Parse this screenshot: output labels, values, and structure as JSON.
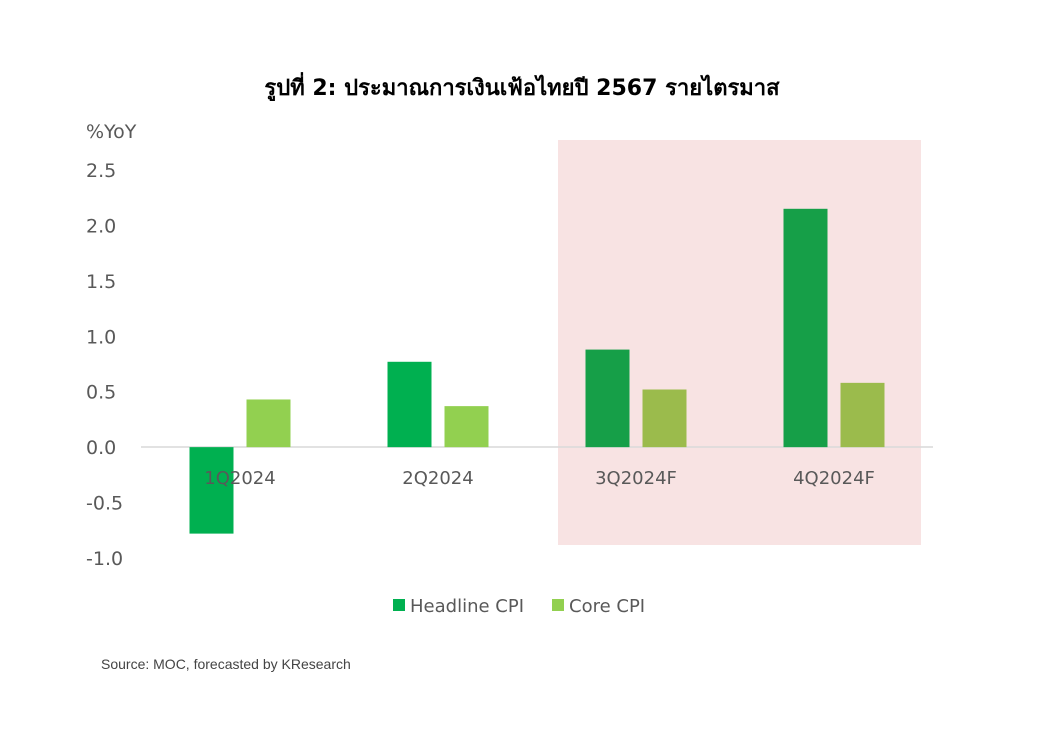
{
  "chart_data": {
    "type": "bar",
    "title": "รูปที่ 2: ประมาณการเงินเฟ้อไทยปี 2567 รายไตรมาส",
    "ylabel": "%YoY",
    "categories": [
      "1Q2024",
      "2Q2024",
      "3Q2024F",
      "4Q2024F"
    ],
    "series": [
      {
        "name": "Headline CPI",
        "values": [
          -0.78,
          0.77,
          0.88,
          2.15
        ]
      },
      {
        "name": "Core CPI",
        "values": [
          0.43,
          0.37,
          0.52,
          0.58
        ]
      }
    ],
    "forecast_highlight": [
      "3Q2024F",
      "4Q2024F"
    ],
    "ylim": [
      -1.0,
      2.5
    ],
    "yticks": [
      "2.5",
      "2.0",
      "1.5",
      "1.0",
      "0.5",
      "0.0",
      "-0.5",
      "-1.0"
    ],
    "grid": false,
    "legend_position": "bottom-center",
    "colors": {
      "headline": "#00B050",
      "headline_forecast": "#169F48",
      "core": "#92D050",
      "core_forecast": "#9BBB4C",
      "forecast_band": "#F8E3E3",
      "axis_text": "#595959",
      "zero_line": "#D9D9D9"
    }
  },
  "source": "Source: MOC, forecasted by KResearch"
}
